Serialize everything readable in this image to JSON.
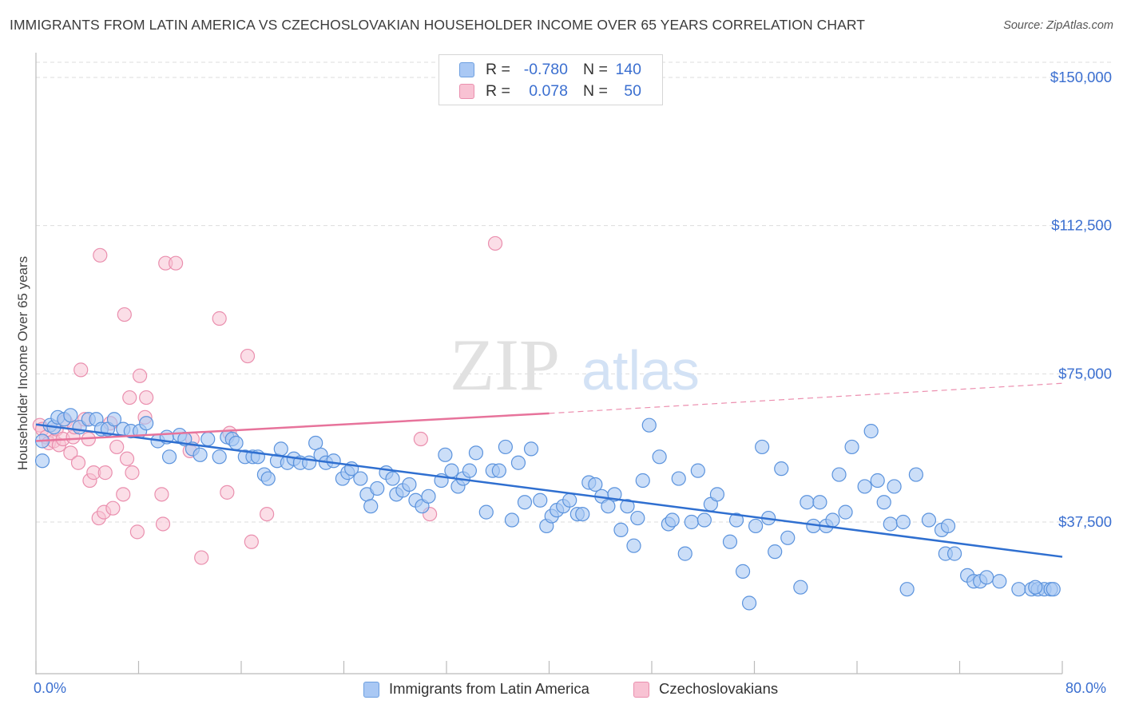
{
  "title": "IMMIGRANTS FROM LATIN AMERICA VS CZECHOSLOVAKIAN HOUSEHOLDER INCOME OVER 65 YEARS CORRELATION CHART",
  "source": "Source: ZipAtlas.com",
  "watermark": {
    "zip": "ZIP",
    "atlas": "atlas"
  },
  "legend": {
    "r_label": "R =",
    "n_label": "N =",
    "rows": [
      {
        "r": "-0.780",
        "n": "140"
      },
      {
        "r": "0.078",
        "n": "50"
      }
    ]
  },
  "bottom_legend": [
    "Immigrants from Latin America",
    "Czechoslovakians"
  ],
  "colors": {
    "blue_fill": "#a9c8f4",
    "blue_stroke": "#5b93dd",
    "blue_line": "#2f6fd0",
    "pink_fill": "#f8c2d3",
    "pink_stroke": "#ea8fae",
    "pink_line": "#e7739b",
    "grid": "#dddddd",
    "axis_text": "#3b6fd0"
  },
  "chart_data": {
    "type": "scatter",
    "title": "IMMIGRANTS FROM LATIN AMERICA VS CZECHOSLOVAKIAN HOUSEHOLDER INCOME OVER 65 YEARS CORRELATION CHART",
    "xlabel": "",
    "ylabel": "Householder Income Over 65 years",
    "xlim": [
      0,
      80
    ],
    "ylim": [
      3000,
      155000
    ],
    "x_tick_labels": [
      "0.0%",
      "80.0%"
    ],
    "y_ticks": [
      {
        "value": 37500,
        "label": "$37,500"
      },
      {
        "value": 75000,
        "label": "$75,000"
      },
      {
        "value": 112500,
        "label": "$112,500"
      },
      {
        "value": 150000,
        "label": "$150,000"
      }
    ],
    "grid": "horizontal dashed",
    "legend_position": "top-center",
    "series": [
      {
        "name": "Immigrants from Latin America",
        "r": -0.78,
        "n": 140,
        "trend": {
          "x": [
            0,
            80
          ],
          "y": [
            62200,
            28700
          ]
        },
        "points": [
          [
            0.5,
            53000
          ],
          [
            0.5,
            58000
          ],
          [
            1.1,
            62000
          ],
          [
            1.4,
            61500
          ],
          [
            1.7,
            64000
          ],
          [
            2.2,
            63500
          ],
          [
            2.7,
            64500
          ],
          [
            3.4,
            61500
          ],
          [
            4.1,
            63500
          ],
          [
            4.7,
            63500
          ],
          [
            5.1,
            61000
          ],
          [
            5.6,
            61000
          ],
          [
            6.1,
            63500
          ],
          [
            6.8,
            61000
          ],
          [
            7.4,
            60500
          ],
          [
            8.1,
            60500
          ],
          [
            8.6,
            62500
          ],
          [
            9.5,
            58000
          ],
          [
            10.2,
            59000
          ],
          [
            10.4,
            54000
          ],
          [
            11.2,
            59500
          ],
          [
            11.6,
            58500
          ],
          [
            12.2,
            56000
          ],
          [
            12.8,
            54500
          ],
          [
            13.4,
            58500
          ],
          [
            14.3,
            54000
          ],
          [
            14.9,
            59000
          ],
          [
            15.3,
            58500
          ],
          [
            15.6,
            57500
          ],
          [
            16.3,
            54000
          ],
          [
            16.9,
            54000
          ],
          [
            17.3,
            54000
          ],
          [
            17.8,
            49500
          ],
          [
            18.1,
            48500
          ],
          [
            18.8,
            53000
          ],
          [
            19.1,
            56000
          ],
          [
            19.6,
            52500
          ],
          [
            20.1,
            53500
          ],
          [
            20.6,
            52500
          ],
          [
            21.3,
            52500
          ],
          [
            21.8,
            57500
          ],
          [
            22.2,
            54500
          ],
          [
            22.6,
            52500
          ],
          [
            23.2,
            53000
          ],
          [
            23.9,
            48500
          ],
          [
            24.3,
            50000
          ],
          [
            24.6,
            51000
          ],
          [
            25.3,
            48500
          ],
          [
            25.8,
            44500
          ],
          [
            26.1,
            41500
          ],
          [
            26.6,
            46000
          ],
          [
            27.3,
            50000
          ],
          [
            27.8,
            48500
          ],
          [
            28.1,
            44500
          ],
          [
            28.6,
            45500
          ],
          [
            29.1,
            47000
          ],
          [
            29.6,
            43000
          ],
          [
            30.1,
            41500
          ],
          [
            30.6,
            44000
          ],
          [
            31.6,
            48000
          ],
          [
            31.9,
            54500
          ],
          [
            32.4,
            50500
          ],
          [
            32.9,
            46500
          ],
          [
            33.3,
            48500
          ],
          [
            33.8,
            50500
          ],
          [
            34.3,
            55000
          ],
          [
            35.1,
            40000
          ],
          [
            35.6,
            50500
          ],
          [
            36.1,
            50500
          ],
          [
            36.6,
            56500
          ],
          [
            37.1,
            38000
          ],
          [
            37.6,
            52500
          ],
          [
            38.1,
            42500
          ],
          [
            38.6,
            56000
          ],
          [
            39.3,
            43000
          ],
          [
            39.8,
            36500
          ],
          [
            40.2,
            39000
          ],
          [
            40.6,
            40500
          ],
          [
            41.1,
            41500
          ],
          [
            41.6,
            43000
          ],
          [
            42.2,
            39500
          ],
          [
            42.6,
            39500
          ],
          [
            43.1,
            47500
          ],
          [
            43.6,
            47000
          ],
          [
            44.1,
            44000
          ],
          [
            44.6,
            41500
          ],
          [
            45.1,
            44500
          ],
          [
            45.6,
            35500
          ],
          [
            46.1,
            41500
          ],
          [
            46.6,
            31500
          ],
          [
            47.3,
            48000
          ],
          [
            47.8,
            62000
          ],
          [
            48.6,
            54000
          ],
          [
            49.3,
            37000
          ],
          [
            49.6,
            38000
          ],
          [
            50.1,
            48500
          ],
          [
            50.6,
            29500
          ],
          [
            51.1,
            37500
          ],
          [
            51.6,
            50500
          ],
          [
            52.1,
            38000
          ],
          [
            52.6,
            42000
          ],
          [
            53.1,
            44500
          ],
          [
            54.1,
            32500
          ],
          [
            54.6,
            38000
          ],
          [
            55.1,
            25000
          ],
          [
            55.6,
            17000
          ],
          [
            56.1,
            36500
          ],
          [
            56.6,
            56500
          ],
          [
            57.1,
            38500
          ],
          [
            57.6,
            30000
          ],
          [
            58.1,
            51000
          ],
          [
            58.6,
            33500
          ],
          [
            59.6,
            21000
          ],
          [
            60.1,
            42500
          ],
          [
            60.6,
            36500
          ],
          [
            61.1,
            42500
          ],
          [
            61.6,
            36500
          ],
          [
            62.1,
            38000
          ],
          [
            62.6,
            49500
          ],
          [
            63.1,
            40000
          ],
          [
            63.6,
            56500
          ],
          [
            64.6,
            46500
          ],
          [
            65.1,
            60500
          ],
          [
            65.6,
            48000
          ],
          [
            66.1,
            42500
          ],
          [
            66.6,
            37000
          ],
          [
            67.6,
            37500
          ],
          [
            67.9,
            20500
          ],
          [
            68.6,
            49500
          ],
          [
            69.6,
            38000
          ],
          [
            70.6,
            35500
          ],
          [
            70.9,
            29500
          ],
          [
            71.6,
            29500
          ],
          [
            72.6,
            24000
          ],
          [
            73.1,
            22500
          ],
          [
            73.6,
            22500
          ],
          [
            74.1,
            23500
          ],
          [
            75.1,
            22500
          ],
          [
            76.6,
            20500
          ],
          [
            77.6,
            20500
          ],
          [
            78.1,
            20500
          ],
          [
            78.6,
            20500
          ],
          [
            79.1,
            20500
          ],
          [
            79.3,
            20500
          ],
          [
            66.9,
            46500
          ],
          [
            71.1,
            36500
          ],
          [
            77.9,
            21000
          ],
          [
            46.9,
            38500
          ]
        ]
      },
      {
        "name": "Czechoslovakians",
        "r": 0.078,
        "n": 50,
        "trend": {
          "x": [
            0,
            40
          ],
          "y": [
            58000,
            65000
          ],
          "dashed_extension_to": [
            80,
            72600
          ]
        },
        "points": [
          [
            0.3,
            62000
          ],
          [
            0.5,
            61000
          ],
          [
            0.8,
            59000
          ],
          [
            1.0,
            57500
          ],
          [
            1.4,
            58000
          ],
          [
            1.6,
            61000
          ],
          [
            1.8,
            57000
          ],
          [
            2.1,
            58500
          ],
          [
            2.3,
            63000
          ],
          [
            2.7,
            55000
          ],
          [
            2.9,
            59000
          ],
          [
            3.0,
            61500
          ],
          [
            3.3,
            52500
          ],
          [
            3.5,
            76000
          ],
          [
            3.8,
            63500
          ],
          [
            4.1,
            58500
          ],
          [
            4.2,
            48000
          ],
          [
            4.5,
            50000
          ],
          [
            4.9,
            38500
          ],
          [
            5.0,
            105000
          ],
          [
            5.3,
            40000
          ],
          [
            5.4,
            50000
          ],
          [
            5.8,
            62500
          ],
          [
            6.0,
            41000
          ],
          [
            6.3,
            56500
          ],
          [
            6.8,
            44500
          ],
          [
            6.9,
            90000
          ],
          [
            7.1,
            53500
          ],
          [
            7.3,
            69000
          ],
          [
            7.5,
            50000
          ],
          [
            7.9,
            35000
          ],
          [
            8.1,
            74500
          ],
          [
            8.5,
            64000
          ],
          [
            8.6,
            69000
          ],
          [
            9.8,
            44500
          ],
          [
            9.9,
            37000
          ],
          [
            10.1,
            103000
          ],
          [
            10.9,
            103000
          ],
          [
            12.0,
            55500
          ],
          [
            12.2,
            58500
          ],
          [
            12.9,
            28500
          ],
          [
            14.3,
            89000
          ],
          [
            14.9,
            45000
          ],
          [
            15.1,
            60000
          ],
          [
            16.5,
            79500
          ],
          [
            16.8,
            32500
          ],
          [
            18.0,
            39500
          ],
          [
            30.0,
            58500
          ],
          [
            30.7,
            39500
          ],
          [
            35.8,
            108000
          ]
        ]
      }
    ]
  }
}
